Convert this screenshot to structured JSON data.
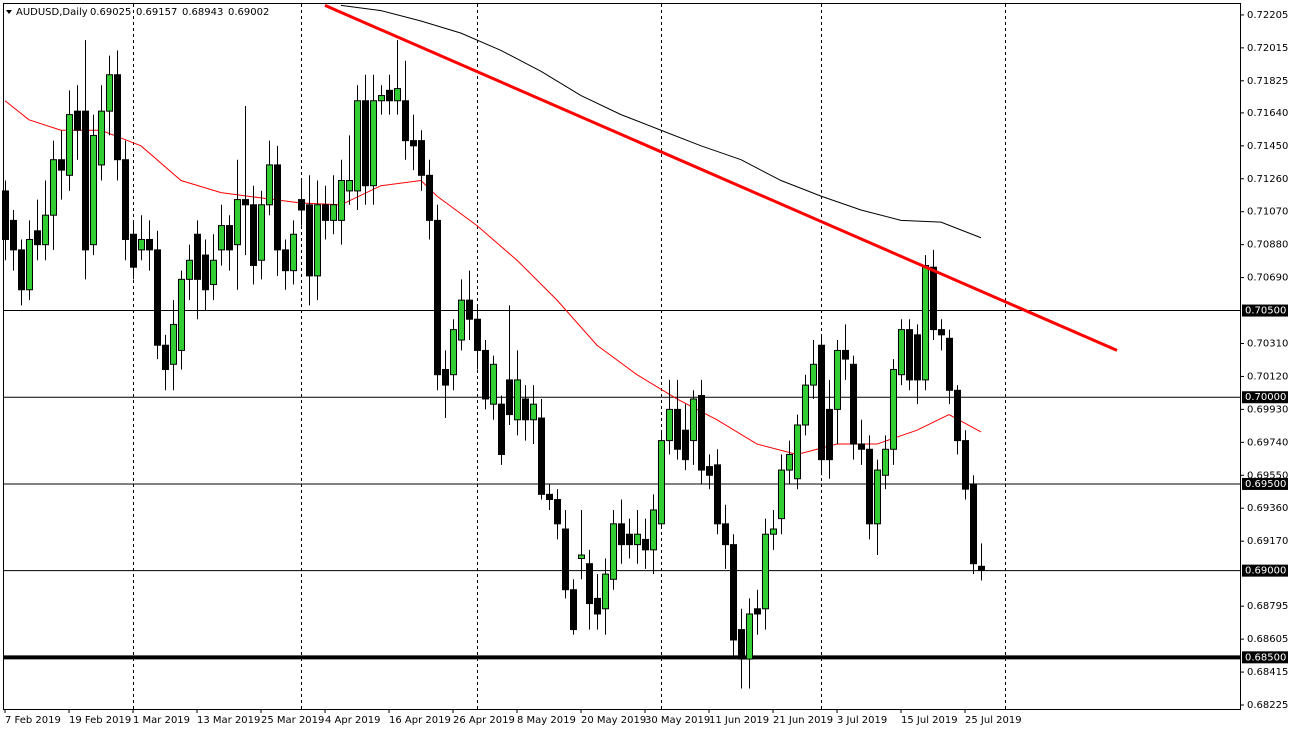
{
  "chart_data": {
    "type": "candlestick",
    "title": "AUDUSD,Daily",
    "categories": [
      "7 Feb 2019",
      null,
      null,
      null,
      null,
      null,
      null,
      null,
      "19 Feb 2019",
      null,
      null,
      null,
      null,
      null,
      null,
      null,
      "1 Mar 2019",
      null,
      null,
      null,
      null,
      null,
      null,
      null,
      "13 Mar 2019",
      null,
      null,
      null,
      null,
      null,
      null,
      null,
      "25 Mar 2019",
      null,
      null,
      null,
      null,
      null,
      null,
      null,
      "4 Apr 2019",
      null,
      null,
      null,
      null,
      null,
      null,
      null,
      "16 Apr 2019",
      null,
      null,
      null,
      null,
      null,
      null,
      null,
      "26 Apr 2019",
      null,
      null,
      null,
      null,
      null,
      null,
      null,
      "8 May 2019",
      null,
      null,
      null,
      null,
      null,
      null,
      null,
      "20 May 2019",
      null,
      null,
      null,
      null,
      null,
      null,
      null,
      "30 May 2019",
      null,
      null,
      null,
      null,
      null,
      null,
      null,
      "11 Jun 2019",
      null,
      null,
      null,
      null,
      null,
      null,
      null,
      "21 Jun 2019",
      null,
      null,
      null,
      null,
      null,
      null,
      null,
      "3 Jul 2019",
      null,
      null,
      null,
      null,
      null,
      null,
      null,
      "15 Jul 2019",
      null,
      null,
      null,
      null,
      null,
      null,
      null,
      "25 Jul 2019",
      null,
      null
    ],
    "open": [
      0.7119,
      0.7102,
      0.7085,
      0.7062,
      0.7096,
      0.7088,
      0.7105,
      0.7137,
      0.7128,
      0.7165,
      0.7165,
      0.7088,
      0.7134,
      0.7165,
      0.7186,
      0.7137,
      0.7094,
      0.7085,
      0.7091,
      0.7085,
      0.703,
      0.7019,
      0.7027,
      0.7068,
      0.7094,
      0.7082,
      0.7065,
      0.7085,
      0.7099,
      0.7088,
      0.7114,
      0.7111,
      0.7079,
      0.7111,
      0.7134,
      0.7085,
      0.7073,
      0.7114,
      0.7111,
      0.707,
      0.7111,
      0.7102,
      0.7102,
      0.7119,
      0.7119,
      0.7171,
      0.7122,
      0.7171,
      0.7177,
      0.7171,
      0.7171,
      0.7148,
      0.7148,
      0.7128,
      0.7102,
      0.7016,
      0.7013,
      0.7033,
      0.7056,
      0.7045,
      0.7027,
      0.6996,
      0.6996,
      0.701,
      0.6987,
      0.6999,
      0.6987,
      0.6988,
      0.6944,
      0.6941,
      0.6924,
      0.6889,
      0.6907,
      0.6904,
      0.6884,
      0.6878,
      0.6895,
      0.6927,
      0.6921,
      0.6915,
      0.6918,
      0.6912,
      0.6927,
      0.6975,
      0.6993,
      0.6981,
      0.6975,
      0.7001,
      0.696,
      0.6961,
      0.6927,
      0.6915,
      0.6866,
      0.6849,
      0.6878,
      0.6878,
      0.6921,
      0.693,
      0.6958,
      0.6953,
      0.6984,
      0.7007,
      0.703,
      0.6993,
      0.6993,
      0.7027,
      0.7019,
      0.6973,
      0.697,
      0.6927,
      0.6955,
      0.697,
      0.7013,
      0.7039,
      0.7036,
      0.701,
      0.7075,
      0.7039,
      0.7034,
      0.7004,
      0.6975,
      0.695,
      0.69025
    ],
    "high": [
      0.7125,
      0.7108,
      0.7091,
      0.7102,
      0.7114,
      0.7125,
      0.7148,
      0.7154,
      0.7177,
      0.718,
      0.7206,
      0.7163,
      0.718,
      0.7197,
      0.72,
      0.7148,
      0.7102,
      0.7105,
      0.7102,
      0.7096,
      0.7036,
      0.7056,
      0.7073,
      0.7088,
      0.7102,
      0.7091,
      0.7094,
      0.7111,
      0.7105,
      0.7137,
      0.7168,
      0.7122,
      0.7119,
      0.7148,
      0.7145,
      0.7091,
      0.7102,
      0.7125,
      0.7128,
      0.7125,
      0.7122,
      0.7128,
      0.7137,
      0.7151,
      0.718,
      0.7186,
      0.7186,
      0.718,
      0.7186,
      0.7206,
      0.7194,
      0.7163,
      0.7154,
      0.7137,
      0.7111,
      0.7027,
      0.7045,
      0.7068,
      0.7073,
      0.7053,
      0.7033,
      0.7024,
      0.7001,
      0.7053,
      0.7027,
      0.7007,
      0.7007,
      0.6999,
      0.695,
      0.6947,
      0.6935,
      0.6895,
      0.6935,
      0.6912,
      0.6898,
      0.6907,
      0.6935,
      0.6941,
      0.693,
      0.6935,
      0.693,
      0.6944,
      0.6981,
      0.701,
      0.701,
      0.6996,
      0.7004,
      0.701,
      0.6967,
      0.697,
      0.6938,
      0.6921,
      0.6878,
      0.6884,
      0.6889,
      0.693,
      0.6935,
      0.6967,
      0.6975,
      0.699,
      0.7013,
      0.7033,
      0.7036,
      0.701,
      0.7033,
      0.7042,
      0.7024,
      0.6987,
      0.6978,
      0.6964,
      0.6978,
      0.7022,
      0.7045,
      0.7045,
      0.7042,
      0.7082,
      0.7085,
      0.7045,
      0.7039,
      0.7007,
      0.6981,
      0.6955,
      0.69157
    ],
    "low": [
      0.7079,
      0.7073,
      0.7053,
      0.7056,
      0.7079,
      0.7079,
      0.7085,
      0.7114,
      0.7119,
      0.7137,
      0.7068,
      0.7082,
      0.7125,
      0.7151,
      0.7125,
      0.7079,
      0.7068,
      0.7079,
      0.7073,
      0.7022,
      0.7004,
      0.7004,
      0.7016,
      0.7056,
      0.7045,
      0.705,
      0.7056,
      0.7076,
      0.7073,
      0.7062,
      0.7082,
      0.7065,
      0.7068,
      0.7105,
      0.707,
      0.7062,
      0.7065,
      0.7099,
      0.7053,
      0.7056,
      0.7091,
      0.7094,
      0.7088,
      0.7111,
      0.7108,
      0.7111,
      0.7111,
      0.7163,
      0.7163,
      0.7163,
      0.7137,
      0.7131,
      0.7119,
      0.7091,
      0.7004,
      0.6988,
      0.7004,
      0.7027,
      0.7033,
      0.7016,
      0.6993,
      0.6987,
      0.6961,
      0.6984,
      0.6978,
      0.6975,
      0.6973,
      0.6941,
      0.6935,
      0.6918,
      0.6884,
      0.6863,
      0.6895,
      0.6866,
      0.6866,
      0.6863,
      0.6889,
      0.6904,
      0.6907,
      0.6904,
      0.6901,
      0.6898,
      0.6924,
      0.6967,
      0.6964,
      0.6958,
      0.6961,
      0.695,
      0.6947,
      0.6921,
      0.6901,
      0.6849,
      0.6832,
      0.6832,
      0.6863,
      0.6866,
      0.6912,
      0.6921,
      0.695,
      0.6947,
      0.6978,
      0.6999,
      0.6955,
      0.6953,
      0.6973,
      0.701,
      0.6964,
      0.6961,
      0.6918,
      0.6909,
      0.6947,
      0.6961,
      0.7007,
      0.7004,
      0.6996,
      0.7004,
      0.7033,
      0.7027,
      0.6996,
      0.6967,
      0.6941,
      0.6898,
      0.68943
    ],
    "close": [
      0.7091,
      0.7085,
      0.7062,
      0.7091,
      0.7088,
      0.7105,
      0.7137,
      0.7131,
      0.7163,
      0.7154,
      0.7085,
      0.7151,
      0.7165,
      0.7186,
      0.7137,
      0.7091,
      0.7075,
      0.7091,
      0.7085,
      0.703,
      0.7016,
      0.7042,
      0.7068,
      0.7079,
      0.7068,
      0.7062,
      0.7079,
      0.7099,
      0.7085,
      0.7114,
      0.7111,
      0.7076,
      0.7111,
      0.7134,
      0.7085,
      0.7073,
      0.7094,
      0.7108,
      0.707,
      0.7111,
      0.7102,
      0.7111,
      0.7125,
      0.7125,
      0.7171,
      0.7122,
      0.7171,
      0.7174,
      0.7171,
      0.7178,
      0.7148,
      0.7145,
      0.7128,
      0.7102,
      0.7013,
      0.7007,
      0.7039,
      0.7056,
      0.7045,
      0.7027,
      0.6999,
      0.7019,
      0.6967,
      0.699,
      0.701,
      0.6987,
      0.6996,
      0.6944,
      0.6941,
      0.6927,
      0.6889,
      0.6866,
      0.6909,
      0.6881,
      0.6875,
      0.6898,
      0.6927,
      0.6915,
      0.6915,
      0.6921,
      0.6912,
      0.6935,
      0.6975,
      0.6993,
      0.697,
      0.6964,
      0.6999,
      0.6958,
      0.6955,
      0.6927,
      0.6915,
      0.686,
      0.6849,
      0.6875,
      0.6875,
      0.6921,
      0.6924,
      0.6958,
      0.6967,
      0.6984,
      0.7007,
      0.7019,
      0.6964,
      0.6964,
      0.7027,
      0.7022,
      0.6973,
      0.697,
      0.6927,
      0.6958,
      0.697,
      0.7016,
      0.7039,
      0.701,
      0.701,
      0.7076,
      0.7039,
      0.7036,
      0.7004,
      0.6975,
      0.6947,
      0.6904,
      0.69002
    ],
    "up_color": "#32cd32",
    "down_color": "#000000",
    "ylim": [
      0.68202,
      0.72268
    ],
    "yticks": [
      0.72205,
      0.72015,
      0.71825,
      {
        "value": 0.7164,
        "label": "0.71640"
      },
      {
        "value": 0.7145,
        "label": "0.71450"
      },
      {
        "value": 0.7126,
        "label": "0.71260"
      },
      {
        "value": 0.7107,
        "label": "0.71070"
      },
      {
        "value": 0.7088,
        "label": "0.70880"
      },
      {
        "value": 0.7069,
        "label": "0.70690"
      },
      {
        "value": 0.7031,
        "label": "0.70310"
      },
      {
        "value": 0.7012,
        "label": "0.70120"
      },
      {
        "value": 0.6993,
        "label": "0.69930"
      },
      {
        "value": 0.6974,
        "label": "0.69740"
      },
      {
        "value": 0.6955,
        "label": "0.69550"
      },
      {
        "value": 0.6936,
        "label": "0.69360"
      },
      {
        "value": 0.6917,
        "label": "0.69170"
      },
      0.68795,
      0.68605,
      0.68415,
      0.68225
    ],
    "hlines": [
      {
        "value": 0.705,
        "label": "0.70500"
      },
      {
        "value": 0.7,
        "label": "0.70000"
      },
      {
        "value": 0.695,
        "label": "0.69500"
      },
      {
        "value": 0.69,
        "label": "0.69000"
      },
      {
        "value": 0.685,
        "label": "0.68500",
        "line_width": 4
      }
    ],
    "separators": [
      16,
      37,
      59,
      82,
      102,
      125
    ],
    "moving_averages": [
      {
        "color": "#ff0000",
        "x": [
          0,
          3,
          7,
          12,
          17,
          22,
          27,
          32,
          37,
          42,
          47,
          52,
          54,
          59,
          64,
          69,
          74,
          79,
          84,
          89,
          94,
          99,
          104,
          109,
          114,
          118,
          122
        ],
        "values": [
          0.7171,
          0.716,
          0.7154,
          0.7154,
          0.7145,
          0.7125,
          0.7118,
          0.7115,
          0.7112,
          0.7111,
          0.7122,
          0.7125,
          0.7116,
          0.7099,
          0.7079,
          0.7056,
          0.703,
          0.7013,
          0.6999,
          0.6987,
          0.6973,
          0.6967,
          0.6973,
          0.6973,
          0.6981,
          0.699,
          0.698
        ]
      },
      {
        "color": "#000000",
        "x": [
          42,
          47,
          52,
          57,
          62,
          67,
          72,
          77,
          82,
          87,
          92,
          97,
          102,
          107,
          112,
          117,
          122
        ],
        "values": [
          0.7226,
          0.7223,
          0.7217,
          0.721,
          0.72,
          0.7188,
          0.7174,
          0.7163,
          0.7154,
          0.7145,
          0.7137,
          0.7125,
          0.7116,
          0.7108,
          0.7102,
          0.7101,
          0.7092
        ]
      }
    ],
    "trendline": {
      "color": "#ff0000",
      "x": [
        40,
        139
      ],
      "values": [
        0.7226,
        0.7027
      ]
    }
  }
}
